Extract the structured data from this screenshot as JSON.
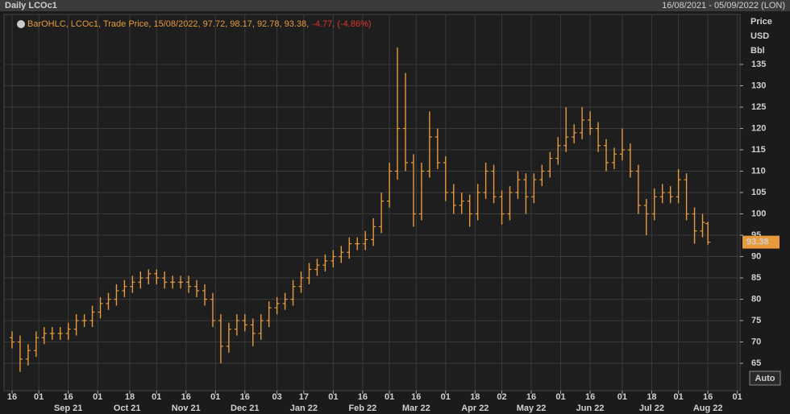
{
  "chart_data": {
    "type": "ohlc",
    "title": "Daily LCOc1",
    "subtitle": "16/08/2021 - 05/09/2022 (LON)",
    "legend_text": "BarOHLC, LCOc1, Trade Price, 15/08/2022, 97.72, 98.17, 92.78, 93.38,",
    "legend_change": "-4.77, (-4.86%)",
    "y_axis_label": [
      "Price",
      "USD",
      "Bbl"
    ],
    "autoscale_button": "Auto",
    "color": "#e89a3c",
    "change_color": "#e0342c",
    "grid": true,
    "x": [
      0,
      3,
      6,
      9,
      12,
      15,
      18,
      21,
      24,
      27,
      30,
      33,
      36,
      39,
      42,
      45,
      48,
      51,
      54,
      57,
      60,
      63,
      66,
      69,
      72,
      75,
      78,
      81,
      84,
      87,
      90,
      93,
      96,
      99,
      102,
      105,
      108,
      111,
      114,
      117,
      120,
      123,
      126,
      129,
      132,
      135,
      138,
      141,
      144,
      147,
      150,
      153,
      156,
      159,
      162,
      165,
      168,
      171,
      174,
      177,
      180,
      183,
      186,
      189,
      192,
      195,
      198,
      201,
      204,
      207,
      210,
      213,
      216,
      219,
      222,
      225,
      228,
      231,
      234,
      237,
      240,
      243,
      246,
      249,
      252,
      255,
      258,
      260
    ],
    "open": [
      71,
      70,
      66,
      68,
      71,
      72,
      72,
      72,
      73,
      75,
      75,
      77,
      79,
      80,
      82,
      83,
      84,
      85,
      86,
      85,
      84,
      84,
      84,
      83,
      82,
      80,
      75,
      69,
      73,
      75,
      74,
      72,
      75,
      78,
      79,
      80,
      83,
      85,
      87,
      88,
      89,
      90,
      91,
      93,
      93,
      94,
      97,
      103,
      110,
      120,
      112,
      100,
      110,
      118,
      112,
      105,
      102,
      103,
      100,
      105,
      110,
      104,
      100,
      105,
      108,
      104,
      108,
      110,
      113,
      116,
      118,
      119,
      122,
      120,
      116,
      112,
      114,
      115,
      110,
      102,
      100,
      104,
      105,
      104,
      108,
      100,
      96,
      97.72
    ],
    "high": [
      72.5,
      71.5,
      69.5,
      72.5,
      73.5,
      73.5,
      73.5,
      74.5,
      76.5,
      76.5,
      78.5,
      80.5,
      81.5,
      83.5,
      84.5,
      85.5,
      86.5,
      87,
      87,
      86.5,
      85.5,
      85.5,
      85.5,
      84.5,
      83.5,
      81.5,
      76.5,
      74.5,
      76.5,
      76.5,
      75.5,
      76.5,
      79.5,
      80.5,
      81.5,
      84.5,
      86.5,
      88.5,
      89.5,
      90.5,
      91.5,
      92.5,
      94.5,
      94.5,
      96,
      99,
      105,
      112,
      139,
      133,
      114,
      112,
      124,
      120,
      113.5,
      107,
      105,
      104.5,
      107,
      112,
      111.5,
      105.5,
      106.5,
      110,
      109.5,
      109.5,
      111.5,
      114.5,
      118,
      125,
      121,
      125,
      124,
      121.5,
      117.5,
      115.5,
      120,
      116.5,
      111.5,
      103.5,
      106,
      107,
      106.5,
      110.5,
      109.5,
      101.5,
      100,
      98.17
    ],
    "low": [
      68.5,
      63,
      64.5,
      66.5,
      69.5,
      70.5,
      70.5,
      70.5,
      71.5,
      73.5,
      73.5,
      75.5,
      77.5,
      78.5,
      80.5,
      81.5,
      82.5,
      83.5,
      83.5,
      82.5,
      82.5,
      82.5,
      81.5,
      80.5,
      78.5,
      73.5,
      65,
      67.5,
      71.5,
      72.5,
      69,
      70.5,
      73.5,
      76.5,
      77.5,
      78.5,
      81.5,
      83.5,
      85.5,
      86.5,
      87.5,
      88.5,
      89.5,
      91.5,
      91.5,
      92.5,
      95.5,
      101.5,
      108,
      110,
      97,
      98.5,
      108.5,
      110.5,
      103,
      100,
      100,
      97,
      98.5,
      103.5,
      102.5,
      97.5,
      98.5,
      103.5,
      100,
      102.5,
      106.5,
      108.5,
      111.5,
      114.5,
      116.5,
      117.5,
      118.5,
      114.5,
      110,
      110.5,
      112.5,
      108.5,
      100,
      95,
      98.5,
      102.5,
      102.5,
      102.5,
      98.5,
      93,
      94.5,
      92.78
    ],
    "close": [
      70,
      66,
      68,
      71,
      72,
      72,
      72,
      73,
      75,
      75,
      77,
      79,
      80,
      82,
      83,
      84,
      85,
      86,
      85,
      84,
      84,
      84,
      83,
      82,
      80,
      75,
      69,
      73,
      75,
      74,
      72,
      75,
      78,
      79,
      80,
      83,
      85,
      87,
      88,
      89,
      90,
      91,
      93,
      93,
      94,
      97,
      103,
      110,
      120,
      112,
      100,
      110,
      118,
      112,
      105,
      102,
      103,
      100,
      105,
      110,
      104,
      100,
      105,
      108,
      104,
      108,
      110,
      113,
      116,
      118,
      119,
      122,
      120,
      116,
      112,
      114,
      115,
      110,
      102,
      100,
      104,
      105,
      104,
      108,
      100,
      96,
      98,
      93.38
    ],
    "ylim": [
      58.6,
      146.7
    ],
    "yticks": [
      65,
      70,
      75,
      80,
      85,
      90,
      95,
      100,
      105,
      110,
      115,
      120,
      125,
      130,
      135
    ],
    "xlim": [
      -3,
      272
    ],
    "xticks": [
      {
        "value": 0,
        "label": "16"
      },
      {
        "value": 10,
        "label": "01"
      },
      {
        "value": 21,
        "label": "16"
      },
      {
        "value": 32,
        "label": "01"
      },
      {
        "value": 44,
        "label": "18"
      },
      {
        "value": 54,
        "label": "01"
      },
      {
        "value": 65,
        "label": "16"
      },
      {
        "value": 76,
        "label": "01"
      },
      {
        "value": 87,
        "label": "16"
      },
      {
        "value": 99,
        "label": "03"
      },
      {
        "value": 109,
        "label": "17"
      },
      {
        "value": 120,
        "label": "01"
      },
      {
        "value": 131,
        "label": "16"
      },
      {
        "value": 141,
        "label": "01"
      },
      {
        "value": 151,
        "label": "16"
      },
      {
        "value": 162,
        "label": "01"
      },
      {
        "value": 173,
        "label": "18"
      },
      {
        "value": 183,
        "label": "02"
      },
      {
        "value": 194,
        "label": "16"
      },
      {
        "value": 205,
        "label": "01"
      },
      {
        "value": 216,
        "label": "16"
      },
      {
        "value": 228,
        "label": "01"
      },
      {
        "value": 239,
        "label": "18"
      },
      {
        "value": 249,
        "label": "01"
      },
      {
        "value": 260,
        "label": "16"
      },
      {
        "value": 271,
        "label": "01"
      }
    ],
    "month_labels": [
      {
        "value": 21,
        "label": "Sep 21"
      },
      {
        "value": 43,
        "label": "Oct 21"
      },
      {
        "value": 65,
        "label": "Nov 21"
      },
      {
        "value": 87,
        "label": "Dec 21"
      },
      {
        "value": 109,
        "label": "Jan 22"
      },
      {
        "value": 131,
        "label": "Feb 22"
      },
      {
        "value": 151,
        "label": "Mar 22"
      },
      {
        "value": 173,
        "label": "Apr 22"
      },
      {
        "value": 194,
        "label": "May 22"
      },
      {
        "value": 216,
        "label": "Jun 22"
      },
      {
        "value": 239,
        "label": "Jul 22"
      },
      {
        "value": 260,
        "label": "Aug 22"
      }
    ]
  }
}
